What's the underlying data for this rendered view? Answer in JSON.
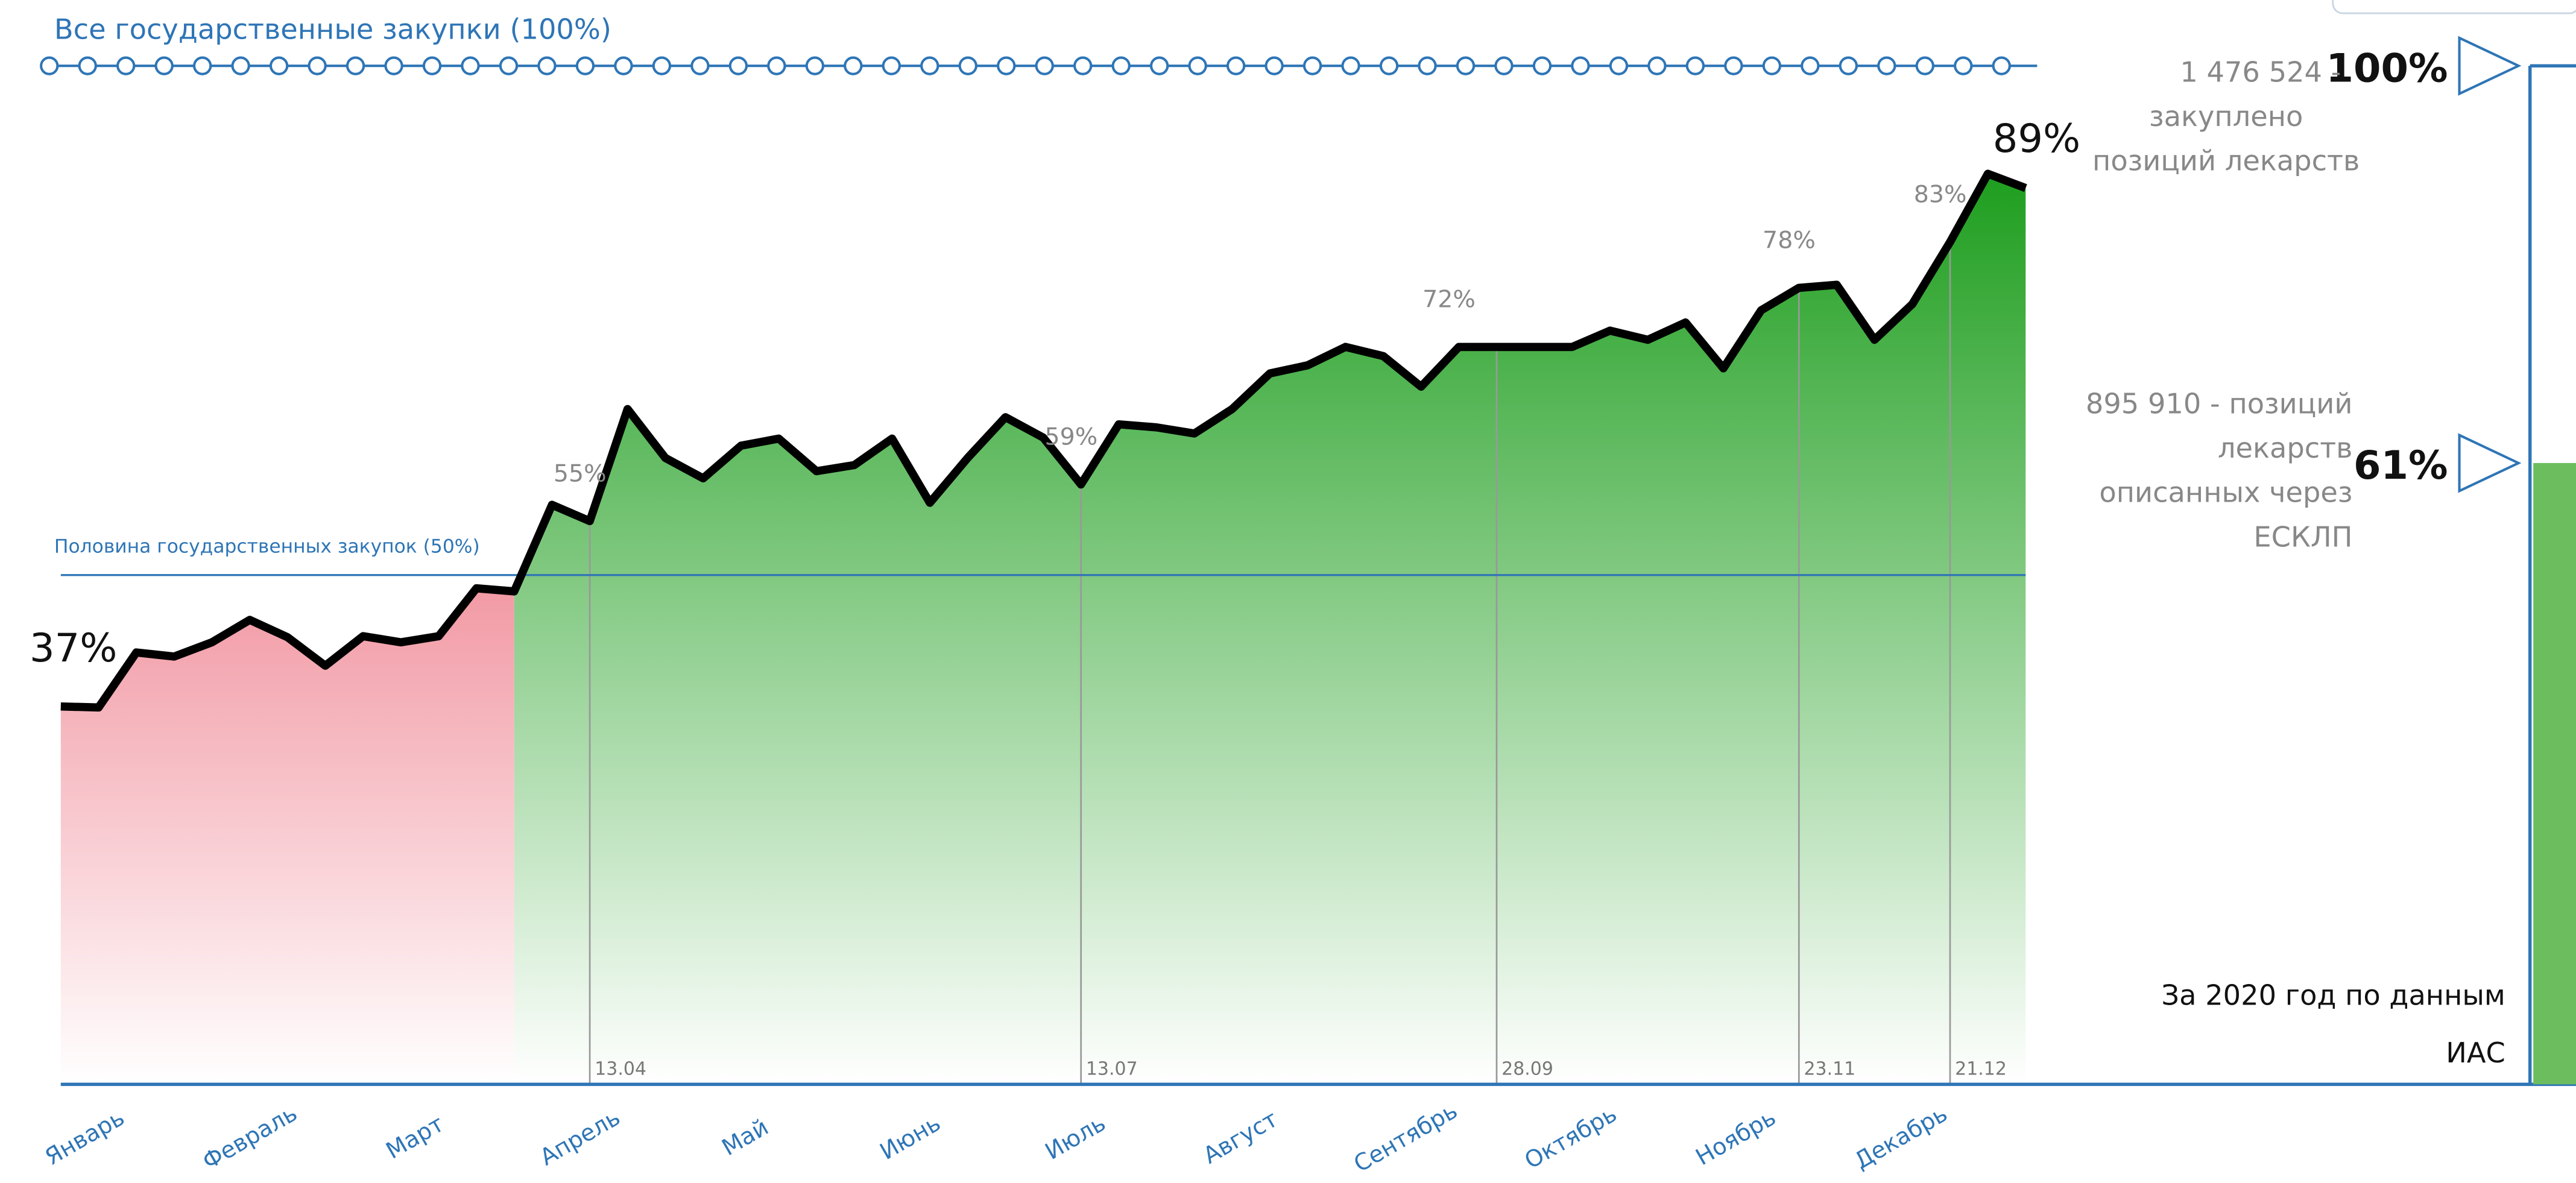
{
  "chart_data": {
    "type": "area",
    "values": [
      37.1,
      37,
      42.4,
      42,
      43.4,
      45.6,
      43.9,
      41.1,
      44,
      43.4,
      44,
      48.7,
      48.4,
      56.9,
      55.3,
      66.3,
      61.5,
      59.5,
      62.7,
      63.4,
      60.2,
      60.8,
      63.4,
      57.1,
      61.5,
      65.5,
      63.5,
      58.9,
      64.8,
      64.5,
      63.9,
      66.3,
      69.8,
      70.6,
      72.4,
      71.5,
      68.5,
      72.4,
      72.4,
      72.4,
      72.4,
      74,
      73.1,
      74.8,
      70.3,
      76,
      78.2,
      78.5,
      73.1,
      76.6,
      82.7,
      89.4,
      88
    ],
    "value_labels": [
      "37%",
      null,
      null,
      null,
      null,
      null,
      null,
      null,
      null,
      null,
      null,
      null,
      null,
      null,
      "55%",
      null,
      null,
      null,
      null,
      null,
      null,
      null,
      null,
      null,
      null,
      null,
      null,
      "59%",
      null,
      null,
      null,
      null,
      null,
      null,
      null,
      null,
      null,
      "72%",
      null,
      null,
      null,
      null,
      null,
      null,
      null,
      null,
      "78%",
      null,
      null,
      null,
      "83%",
      "89%",
      null
    ],
    "ylim": [
      0,
      100
    ],
    "months": [
      "Январь",
      "Февраль",
      "Март",
      "Апрель",
      "Май",
      "Июнь",
      "Июль",
      "Август",
      "Сентябрь",
      "Октябрь",
      "Ноябрь",
      "Декабрь"
    ],
    "split_index": 12,
    "color_before": "#f29aa5",
    "color_after": "#1e9e1e",
    "line_color": "#000000",
    "axis_color": "#2e75b6",
    "reference_lines": [
      {
        "label": "Все государственные закупки (100%)",
        "value": 100
      },
      {
        "label": "Половина государственных закупок (50%)",
        "value": 50
      }
    ],
    "markers": [
      {
        "label": "13.04",
        "index": 14
      },
      {
        "label": "13.07",
        "index": 27
      },
      {
        "label": "28.09",
        "index": 38
      },
      {
        "label": "23.11",
        "index": 46
      },
      {
        "label": "21.12",
        "index": 50
      }
    ],
    "summary": [
      {
        "lines": [
          "1 476 524 -",
          "закуплено",
          "позиций лекарств"
        ],
        "percent_label": "100%",
        "value": 100
      },
      {
        "lines": [
          "895 910 - позиций",
          "лекарств",
          "описанных через",
          "ЕСКЛП"
        ],
        "percent_label": "61%",
        "value": 61
      }
    ],
    "footnote": [
      "За 2020 год по данным",
      "ИАС"
    ]
  }
}
